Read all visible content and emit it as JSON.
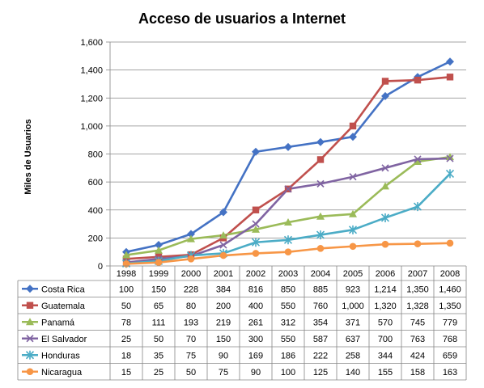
{
  "chart_data": {
    "type": "line",
    "title": "Acceso de usuarios a Internet",
    "xlabel": "",
    "ylabel": "Miles de Usuarios",
    "ylim": [
      0,
      1600
    ],
    "ytick_step": 200,
    "grid": true,
    "legend": "table-below",
    "categories": [
      "1998",
      "1999",
      "2000",
      "2001",
      "2002",
      "2003",
      "2004",
      "2005",
      "2006",
      "2007",
      "2008"
    ],
    "series": [
      {
        "name": "Costa Rica",
        "color": "#4472C4",
        "marker": "diamond",
        "values": [
          100,
          150,
          228,
          384,
          816,
          850,
          885,
          923,
          1214,
          1350,
          1460
        ],
        "labels": [
          "100",
          "150",
          "228",
          "384",
          "816",
          "850",
          "885",
          "923",
          "1,214",
          "1,350",
          "1,460"
        ]
      },
      {
        "name": "Guatemala",
        "color": "#C0504D",
        "marker": "square",
        "values": [
          50,
          65,
          80,
          200,
          400,
          550,
          760,
          1000,
          1320,
          1328,
          1350
        ],
        "labels": [
          "50",
          "65",
          "80",
          "200",
          "400",
          "550",
          "760",
          "1,000",
          "1,320",
          "1,328",
          "1,350"
        ]
      },
      {
        "name": "Panamá",
        "color": "#9BBB59",
        "marker": "triangle",
        "values": [
          78,
          111,
          193,
          219,
          261,
          312,
          354,
          371,
          570,
          745,
          779
        ],
        "labels": [
          "78",
          "111",
          "193",
          "219",
          "261",
          "312",
          "354",
          "371",
          "570",
          "745",
          "779"
        ]
      },
      {
        "name": "El Salvador",
        "color": "#8064A2",
        "marker": "x",
        "values": [
          25,
          50,
          70,
          150,
          300,
          550,
          587,
          637,
          700,
          763,
          768
        ],
        "labels": [
          "25",
          "50",
          "70",
          "150",
          "300",
          "550",
          "587",
          "637",
          "700",
          "763",
          "768"
        ]
      },
      {
        "name": "Honduras",
        "color": "#4BACC6",
        "marker": "star",
        "values": [
          18,
          35,
          75,
          90,
          169,
          186,
          222,
          258,
          344,
          424,
          659
        ],
        "labels": [
          "18",
          "35",
          "75",
          "90",
          "169",
          "186",
          "222",
          "258",
          "344",
          "424",
          "659"
        ]
      },
      {
        "name": "Nicaragua",
        "color": "#F79646",
        "marker": "circle",
        "values": [
          15,
          25,
          50,
          75,
          90,
          100,
          125,
          140,
          155,
          158,
          163
        ],
        "labels": [
          "15",
          "25",
          "50",
          "75",
          "90",
          "100",
          "125",
          "140",
          "155",
          "158",
          "163"
        ]
      }
    ]
  }
}
